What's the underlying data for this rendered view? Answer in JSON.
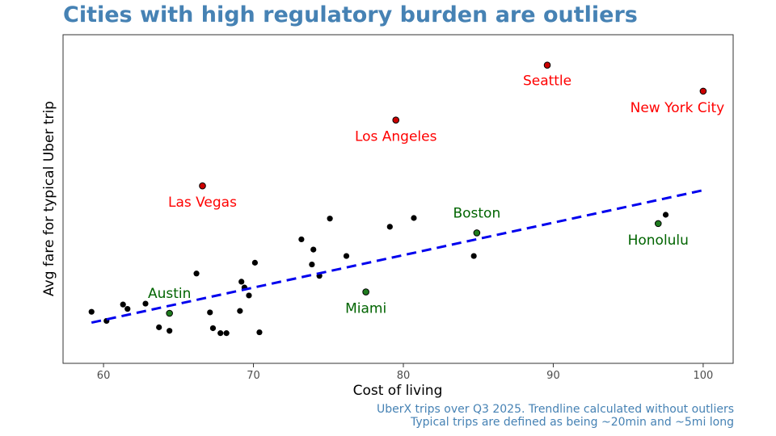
{
  "chart_data": {
    "type": "scatter",
    "title": "Cities with high regulatory burden are outliers",
    "xlabel": "Cost of living",
    "ylabel": "Avg fare for typical Uber trip",
    "xlim": [
      57.3,
      102
    ],
    "ylim": [
      0,
      100
    ],
    "xticks": [
      60,
      70,
      80,
      90,
      100
    ],
    "xtick_labels": [
      "60",
      "70",
      "80",
      "90",
      "100"
    ],
    "grid": false,
    "y_ticks_shown": false,
    "captions": [
      "UberX trips over Q3 2025. Trendline calculated without outliers",
      "Typical trips are defined as being ~20min and ~5mi long"
    ],
    "colors": {
      "title": "#4682b4",
      "caption": "#4682b4",
      "outlier": "#ff0000",
      "outlier_fill": "#cc0000",
      "highlight": "#006400",
      "highlight_fill": "#1e7b1e",
      "point": "#000000",
      "trend": "#0000ee"
    },
    "trendline": {
      "x": [
        59.2,
        100
      ],
      "y": [
        8.4,
        53.7
      ],
      "style": "dashed"
    },
    "labeled_points": [
      {
        "label": "Seattle",
        "x": 89.6,
        "y": 96.5,
        "group": "outlier"
      },
      {
        "label": "New York City",
        "x": 100,
        "y": 87.6,
        "group": "outlier"
      },
      {
        "label": "Los Angeles",
        "x": 79.5,
        "y": 77.7,
        "group": "outlier"
      },
      {
        "label": "Las Vegas",
        "x": 66.6,
        "y": 55.2,
        "group": "outlier"
      },
      {
        "label": "Boston",
        "x": 84.9,
        "y": 39.1,
        "group": "highlight"
      },
      {
        "label": "Honolulu",
        "x": 97,
        "y": 42.3,
        "group": "highlight"
      },
      {
        "label": "Miami",
        "x": 77.5,
        "y": 18.9,
        "group": "highlight"
      },
      {
        "label": "Austin",
        "x": 64.4,
        "y": 11.6,
        "group": "highlight"
      }
    ],
    "points": [
      {
        "x": 59.2,
        "y": 12.1
      },
      {
        "x": 60.2,
        "y": 9.0
      },
      {
        "x": 61.3,
        "y": 14.6
      },
      {
        "x": 61.6,
        "y": 13.1
      },
      {
        "x": 62.8,
        "y": 14.9
      },
      {
        "x": 63.7,
        "y": 6.8
      },
      {
        "x": 64.4,
        "y": 5.6
      },
      {
        "x": 66.2,
        "y": 25.2
      },
      {
        "x": 67.1,
        "y": 11.9
      },
      {
        "x": 67.3,
        "y": 6.5
      },
      {
        "x": 67.8,
        "y": 4.8
      },
      {
        "x": 68.2,
        "y": 4.8
      },
      {
        "x": 69.1,
        "y": 12.4
      },
      {
        "x": 69.2,
        "y": 22.4
      },
      {
        "x": 69.4,
        "y": 20.4
      },
      {
        "x": 69.7,
        "y": 17.7
      },
      {
        "x": 70.1,
        "y": 28.9
      },
      {
        "x": 70.4,
        "y": 5.1
      },
      {
        "x": 73.2,
        "y": 36.9
      },
      {
        "x": 73.9,
        "y": 28.3
      },
      {
        "x": 74.0,
        "y": 33.4
      },
      {
        "x": 74.4,
        "y": 24.4
      },
      {
        "x": 75.1,
        "y": 44.0
      },
      {
        "x": 76.2,
        "y": 31.2
      },
      {
        "x": 79.1,
        "y": 41.2
      },
      {
        "x": 80.7,
        "y": 44.2
      },
      {
        "x": 84.7,
        "y": 31.2
      },
      {
        "x": 97.5,
        "y": 45.3
      }
    ]
  }
}
